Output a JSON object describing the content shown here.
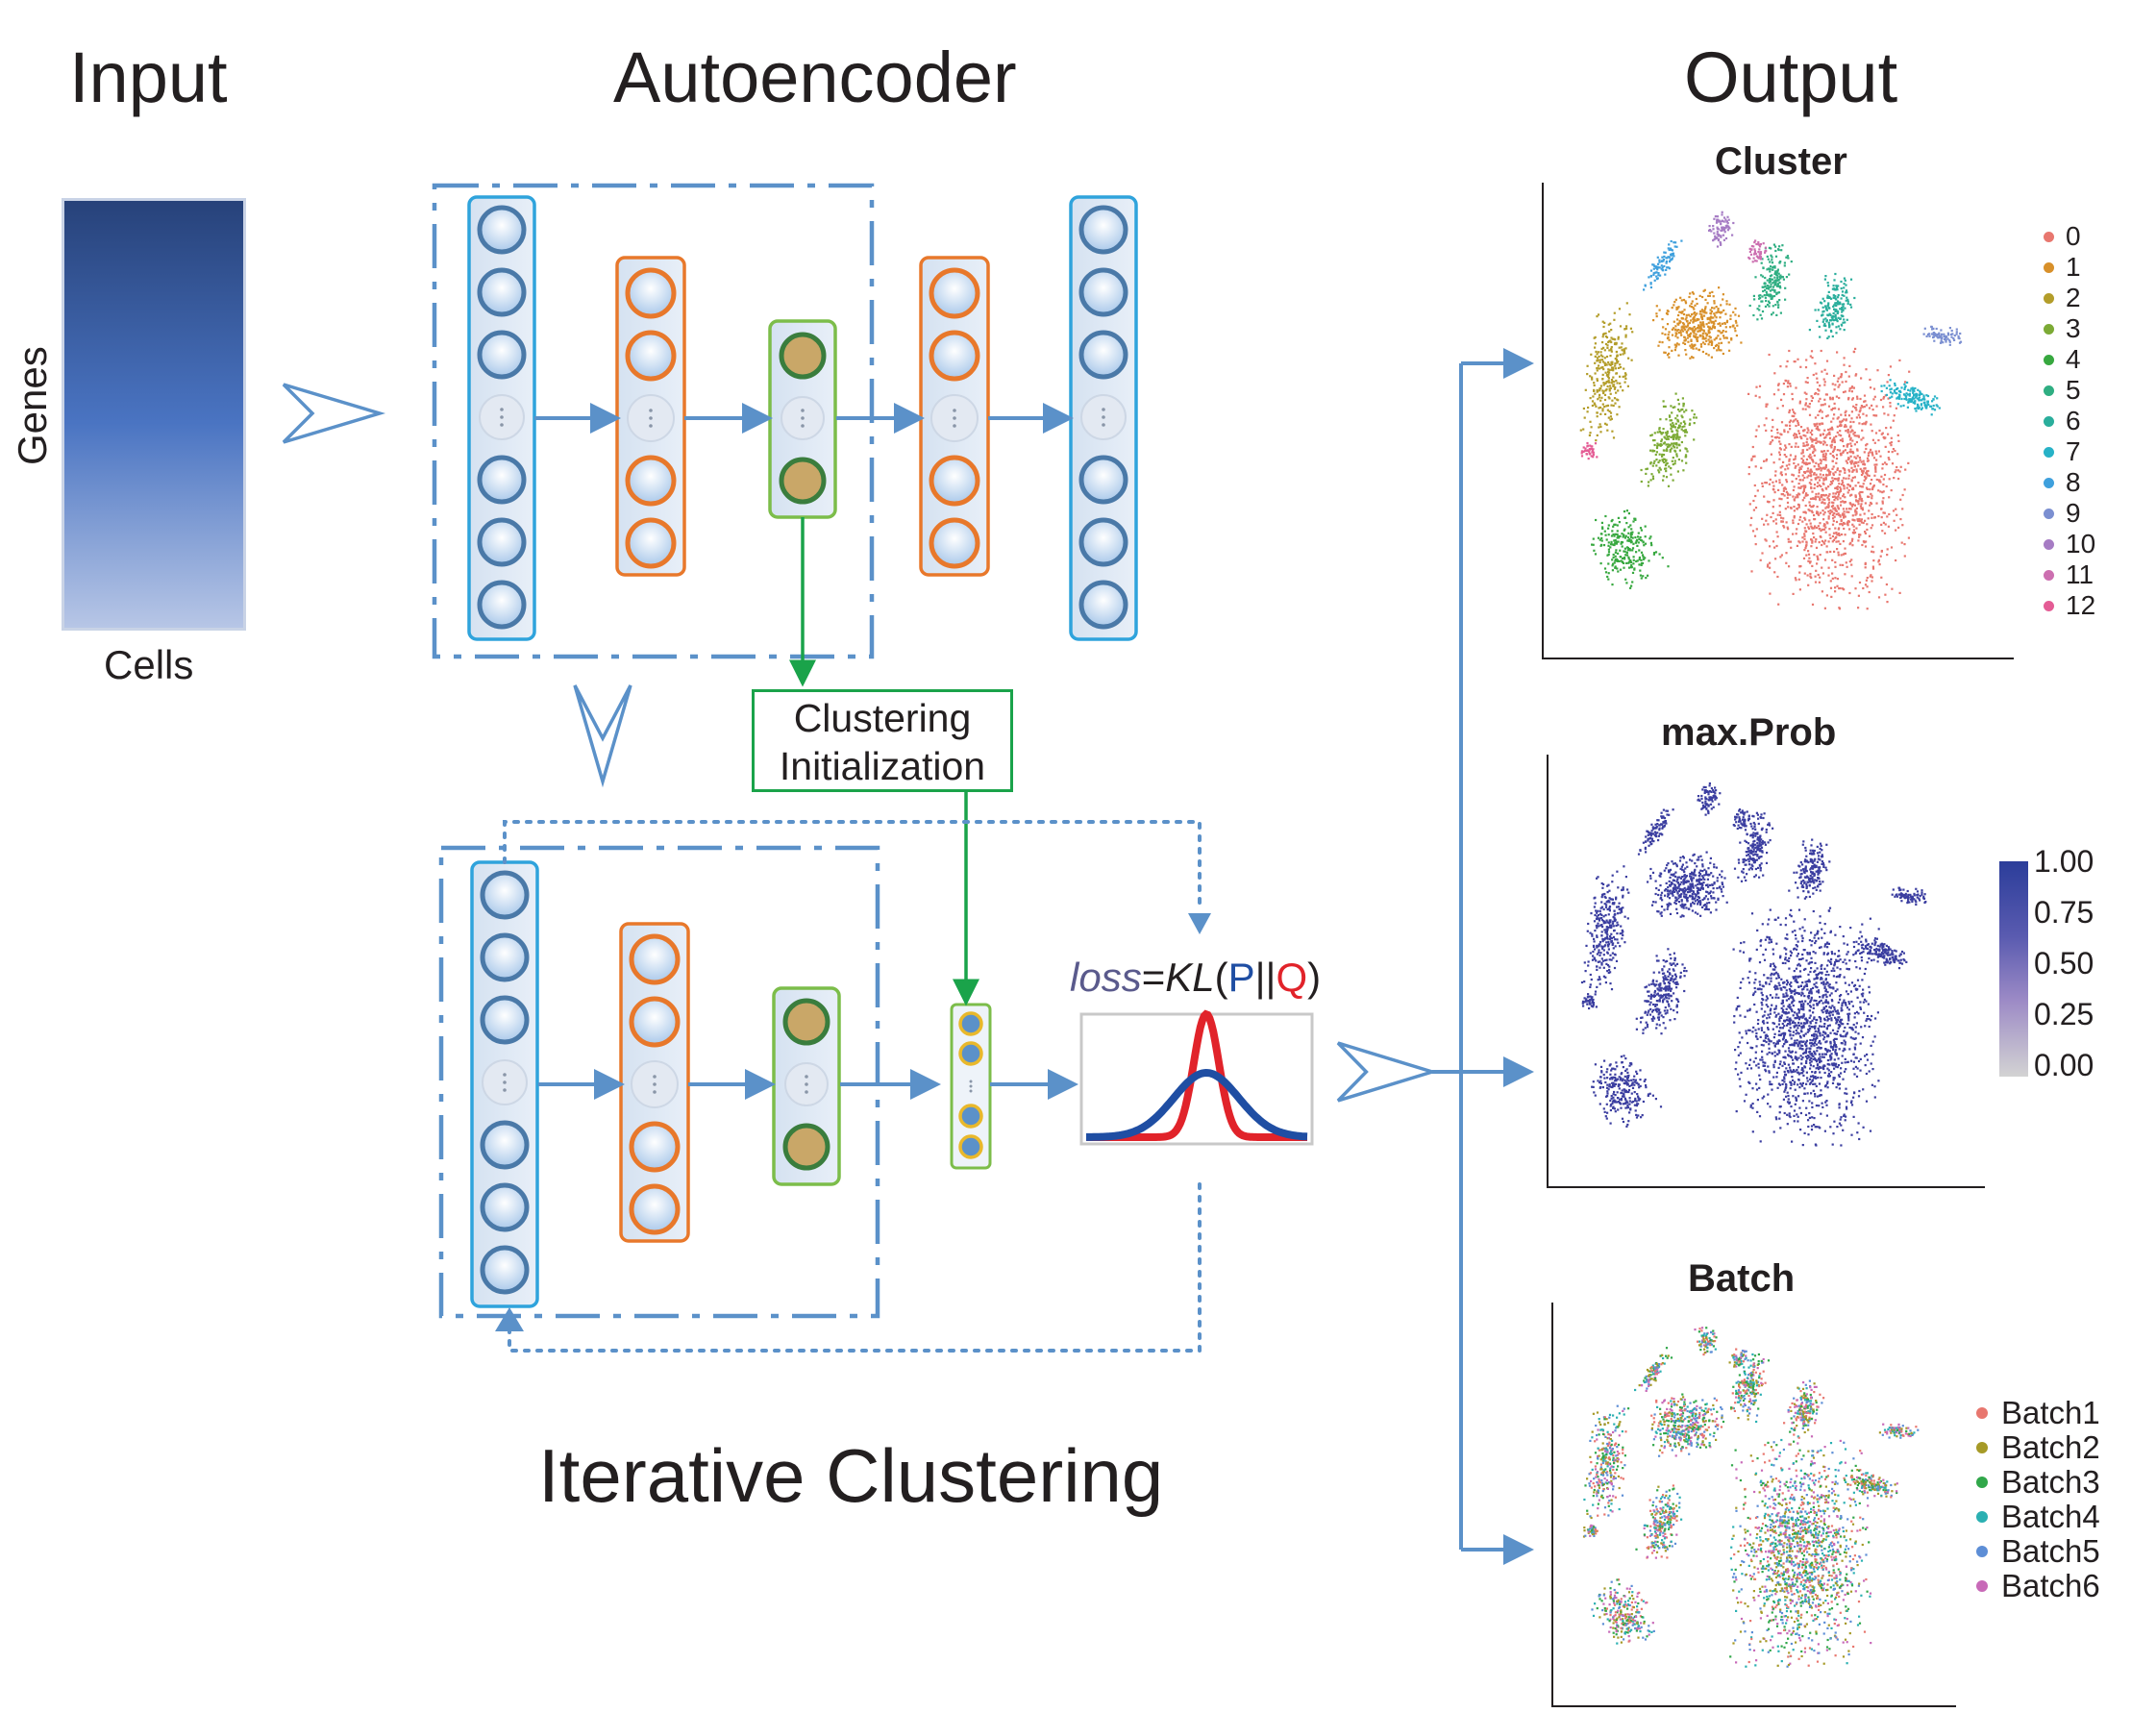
{
  "headers": {
    "input": "Input",
    "autoencoder": "Autoencoder",
    "output": "Output",
    "iterative": "Iterative Clustering"
  },
  "matrix": {
    "genes_label": "Genes",
    "cells_label": "Cells",
    "gradient_top": "#27427a",
    "gradient_mid": "#4a74c2",
    "gradient_bottom": "#b7c6e6"
  },
  "clustering_init": {
    "line1": "Clustering",
    "line2": "Initialization"
  },
  "loss": {
    "word": "loss",
    "eq": "=",
    "kl": "KL",
    "open": "(",
    "p": "P",
    "sep": "||",
    "q": "Q",
    "close": ")"
  },
  "colors": {
    "input_layer": "#2fa3dc",
    "hidden_layer": "#e8782b",
    "latent_layer": "#7cbd4a",
    "node_ring_blue": "#4a79a8",
    "node_ring_orange": "#e8782b",
    "node_ring_green": "#3a7d3d",
    "node_fill_gold": "#c9a768",
    "arrow_blue": "#5b91c9",
    "green_arrow": "#1aa34a",
    "p_curve": "#e1232a",
    "q_curve": "#1f4ea3",
    "loss_word": "#5a5a8c",
    "dash_box": "#5b91c9"
  },
  "icons": [
    "chevron-right-icon",
    "chevron-down-icon",
    "ellipsis-icon"
  ],
  "plots": {
    "cluster": {
      "title": "Cluster",
      "legend": [
        {
          "label": "0",
          "color": "#e8776f"
        },
        {
          "label": "1",
          "color": "#d8902a"
        },
        {
          "label": "2",
          "color": "#b39d2a"
        },
        {
          "label": "3",
          "color": "#7caa35"
        },
        {
          "label": "4",
          "color": "#37a83f"
        },
        {
          "label": "5",
          "color": "#2fae82"
        },
        {
          "label": "6",
          "color": "#2aae9c"
        },
        {
          "label": "7",
          "color": "#27b2c7"
        },
        {
          "label": "8",
          "color": "#3fa0dd"
        },
        {
          "label": "9",
          "color": "#7b8fd1"
        },
        {
          "label": "10",
          "color": "#a67cc4"
        },
        {
          "label": "11",
          "color": "#cc6fb0"
        },
        {
          "label": "12",
          "color": "#e45c95"
        }
      ]
    },
    "maxprob": {
      "title": "max.Prob",
      "colorbar_ticks": [
        "1.00",
        "0.75",
        "0.50",
        "0.25",
        "0.00"
      ],
      "color_high": "#2b3d9a",
      "color_low": "#d3d3d3",
      "point_color": "#3b3ea0"
    },
    "batch": {
      "title": "Batch",
      "legend": [
        {
          "label": "Batch1",
          "color": "#e8776f"
        },
        {
          "label": "Batch2",
          "color": "#a69a27"
        },
        {
          "label": "Batch3",
          "color": "#31a74a"
        },
        {
          "label": "Batch4",
          "color": "#2bb0b2"
        },
        {
          "label": "Batch5",
          "color": "#5d8ed6"
        },
        {
          "label": "Batch6",
          "color": "#c86ab8"
        }
      ]
    }
  }
}
